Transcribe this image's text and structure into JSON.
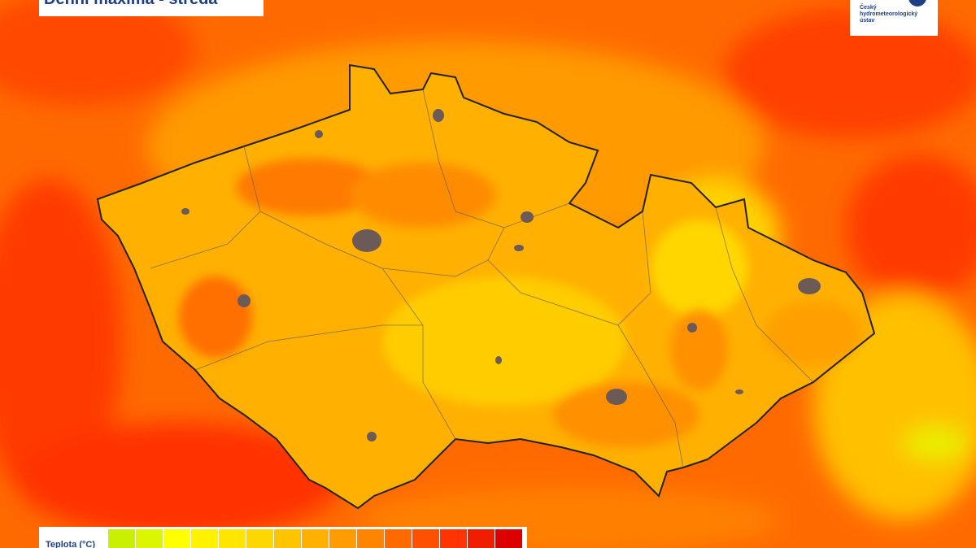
{
  "header": {
    "title": "Denní maxima - středa"
  },
  "logo": {
    "text": "Český hydrometeorologický ústav"
  },
  "legend": {
    "label": "Teplota (°C)",
    "colors": [
      "#c8f000",
      "#dcf500",
      "#ffff00",
      "#fff200",
      "#ffe600",
      "#ffd700",
      "#ffc400",
      "#ffb000",
      "#ff9c00",
      "#ff8500",
      "#ff6a00",
      "#ff5000",
      "#ff3400",
      "#f01e00",
      "#dc0000"
    ]
  }
}
